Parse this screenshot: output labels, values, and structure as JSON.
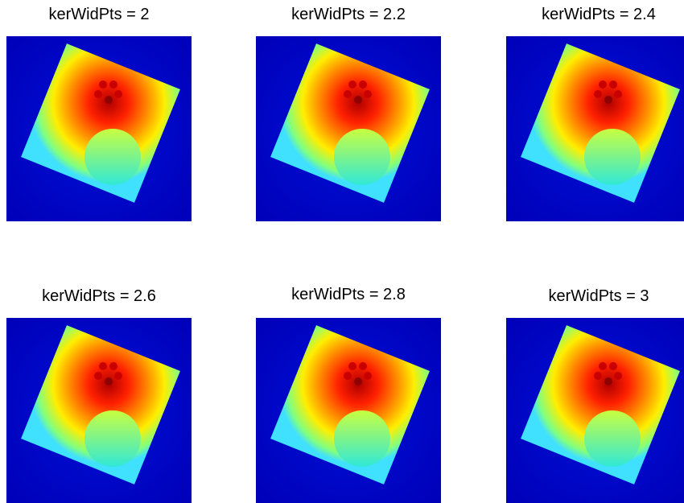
{
  "panels": [
    {
      "title": "kerWidPts = 2"
    },
    {
      "title": "kerWidPts = 2.2"
    },
    {
      "title": "kerWidPts = 2.4"
    },
    {
      "title": "kerWidPts = 2.6"
    },
    {
      "title": "kerWidPts = 2.8"
    },
    {
      "title": "kerWidPts = 3"
    }
  ]
}
